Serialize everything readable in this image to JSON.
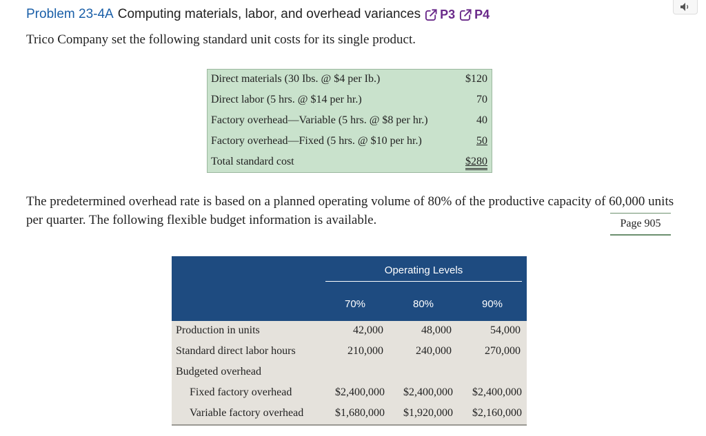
{
  "header": {
    "problem_label": "Problem 23-4A",
    "problem_title": "Computing materials, labor, and overhead variances",
    "objectives": [
      "P3",
      "P4"
    ],
    "icons": [
      "external-link-icon",
      "speaker-icon"
    ]
  },
  "intro": "Trico Company set the following standard unit costs for its single product.",
  "standard_costs": {
    "rows": [
      {
        "label": "Direct materials (30 Ibs. @ $4 per Ib.)",
        "amount": "$120"
      },
      {
        "label": "Direct labor (5 hrs. @ $14 per hr.)",
        "amount": "70"
      },
      {
        "label": "Factory overhead—Variable (5 hrs. @ $8 per hr.)",
        "amount": "40"
      },
      {
        "label": "Factory overhead—Fixed (5 hrs. @ $10 per hr.)",
        "amount": "50"
      },
      {
        "label": "Total standard cost",
        "amount": "$280"
      }
    ]
  },
  "paragraph": "The predetermined overhead rate is based on a planned operating volume of 80% of the productive capacity of 60,000 units per quarter. The following flexible budget information is available.",
  "page_ref": "Page 905",
  "flexible_budget": {
    "group_header": "Operating Levels",
    "columns": [
      "70%",
      "80%",
      "90%"
    ],
    "rows": [
      {
        "label": "Production in units",
        "values": [
          "42,000",
          "48,000",
          "54,000"
        ]
      },
      {
        "label": "Standard direct labor hours",
        "values": [
          "210,000",
          "240,000",
          "270,000"
        ]
      },
      {
        "label": "Budgeted overhead",
        "values": []
      },
      {
        "label": "Fixed factory overhead",
        "values": [
          "$2,400,000",
          "$2,400,000",
          "$2,400,000"
        ]
      },
      {
        "label": "Variable factory overhead",
        "values": [
          "$1,680,000",
          "$1,920,000",
          "$2,160,000"
        ]
      }
    ]
  },
  "colors": {
    "link_blue": "#1a5fa8",
    "objective_purple": "#6a2a8a",
    "std_table_bg": "#c9e2cc",
    "flex_header_bg": "#1e4b80",
    "flex_body_bg": "#e5e2dc"
  }
}
